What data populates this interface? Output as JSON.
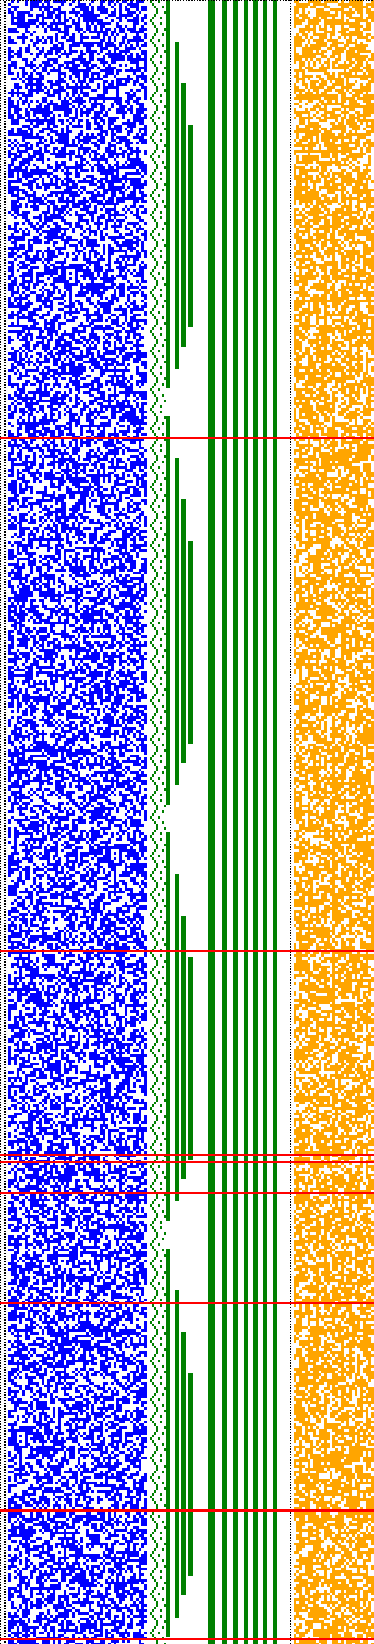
{
  "visualization": {
    "description_kind": "bit-pattern visualization",
    "palette": {
      "background": "#ffffff",
      "blue": "#0000ff",
      "green": "#008000",
      "orange": "#ffa500",
      "red": "#ff0000",
      "dotted": "#000000"
    },
    "panels": [
      {
        "name": "blue-noise-panel",
        "color": "#0000ff",
        "density": 0.55
      },
      {
        "name": "green-staircase-panel",
        "color": "#008000"
      },
      {
        "name": "orange-noise-panel",
        "color": "#ffa500",
        "density": 0.62
      }
    ],
    "red_separator_rows_fraction": [
      0.266,
      0.578,
      0.702,
      0.706,
      0.725,
      0.792,
      0.918,
      0.996
    ]
  }
}
